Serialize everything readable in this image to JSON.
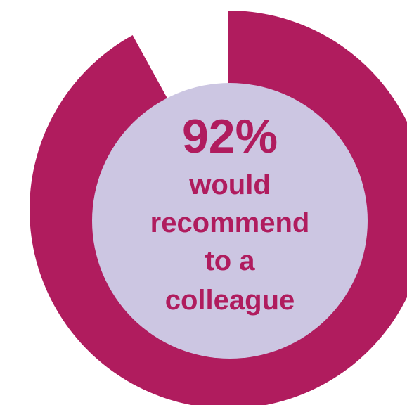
{
  "chart_data": {
    "type": "pie",
    "subtype": "donut-progress",
    "value_percent": 92,
    "value_label": "92%",
    "caption_lines": [
      "would",
      "recommend",
      "to a",
      "colleague"
    ],
    "colors": {
      "progress": "#b01c5e",
      "remainder": "#ffffff",
      "center": "#ccc6e2",
      "text": "#b01c5e"
    }
  }
}
